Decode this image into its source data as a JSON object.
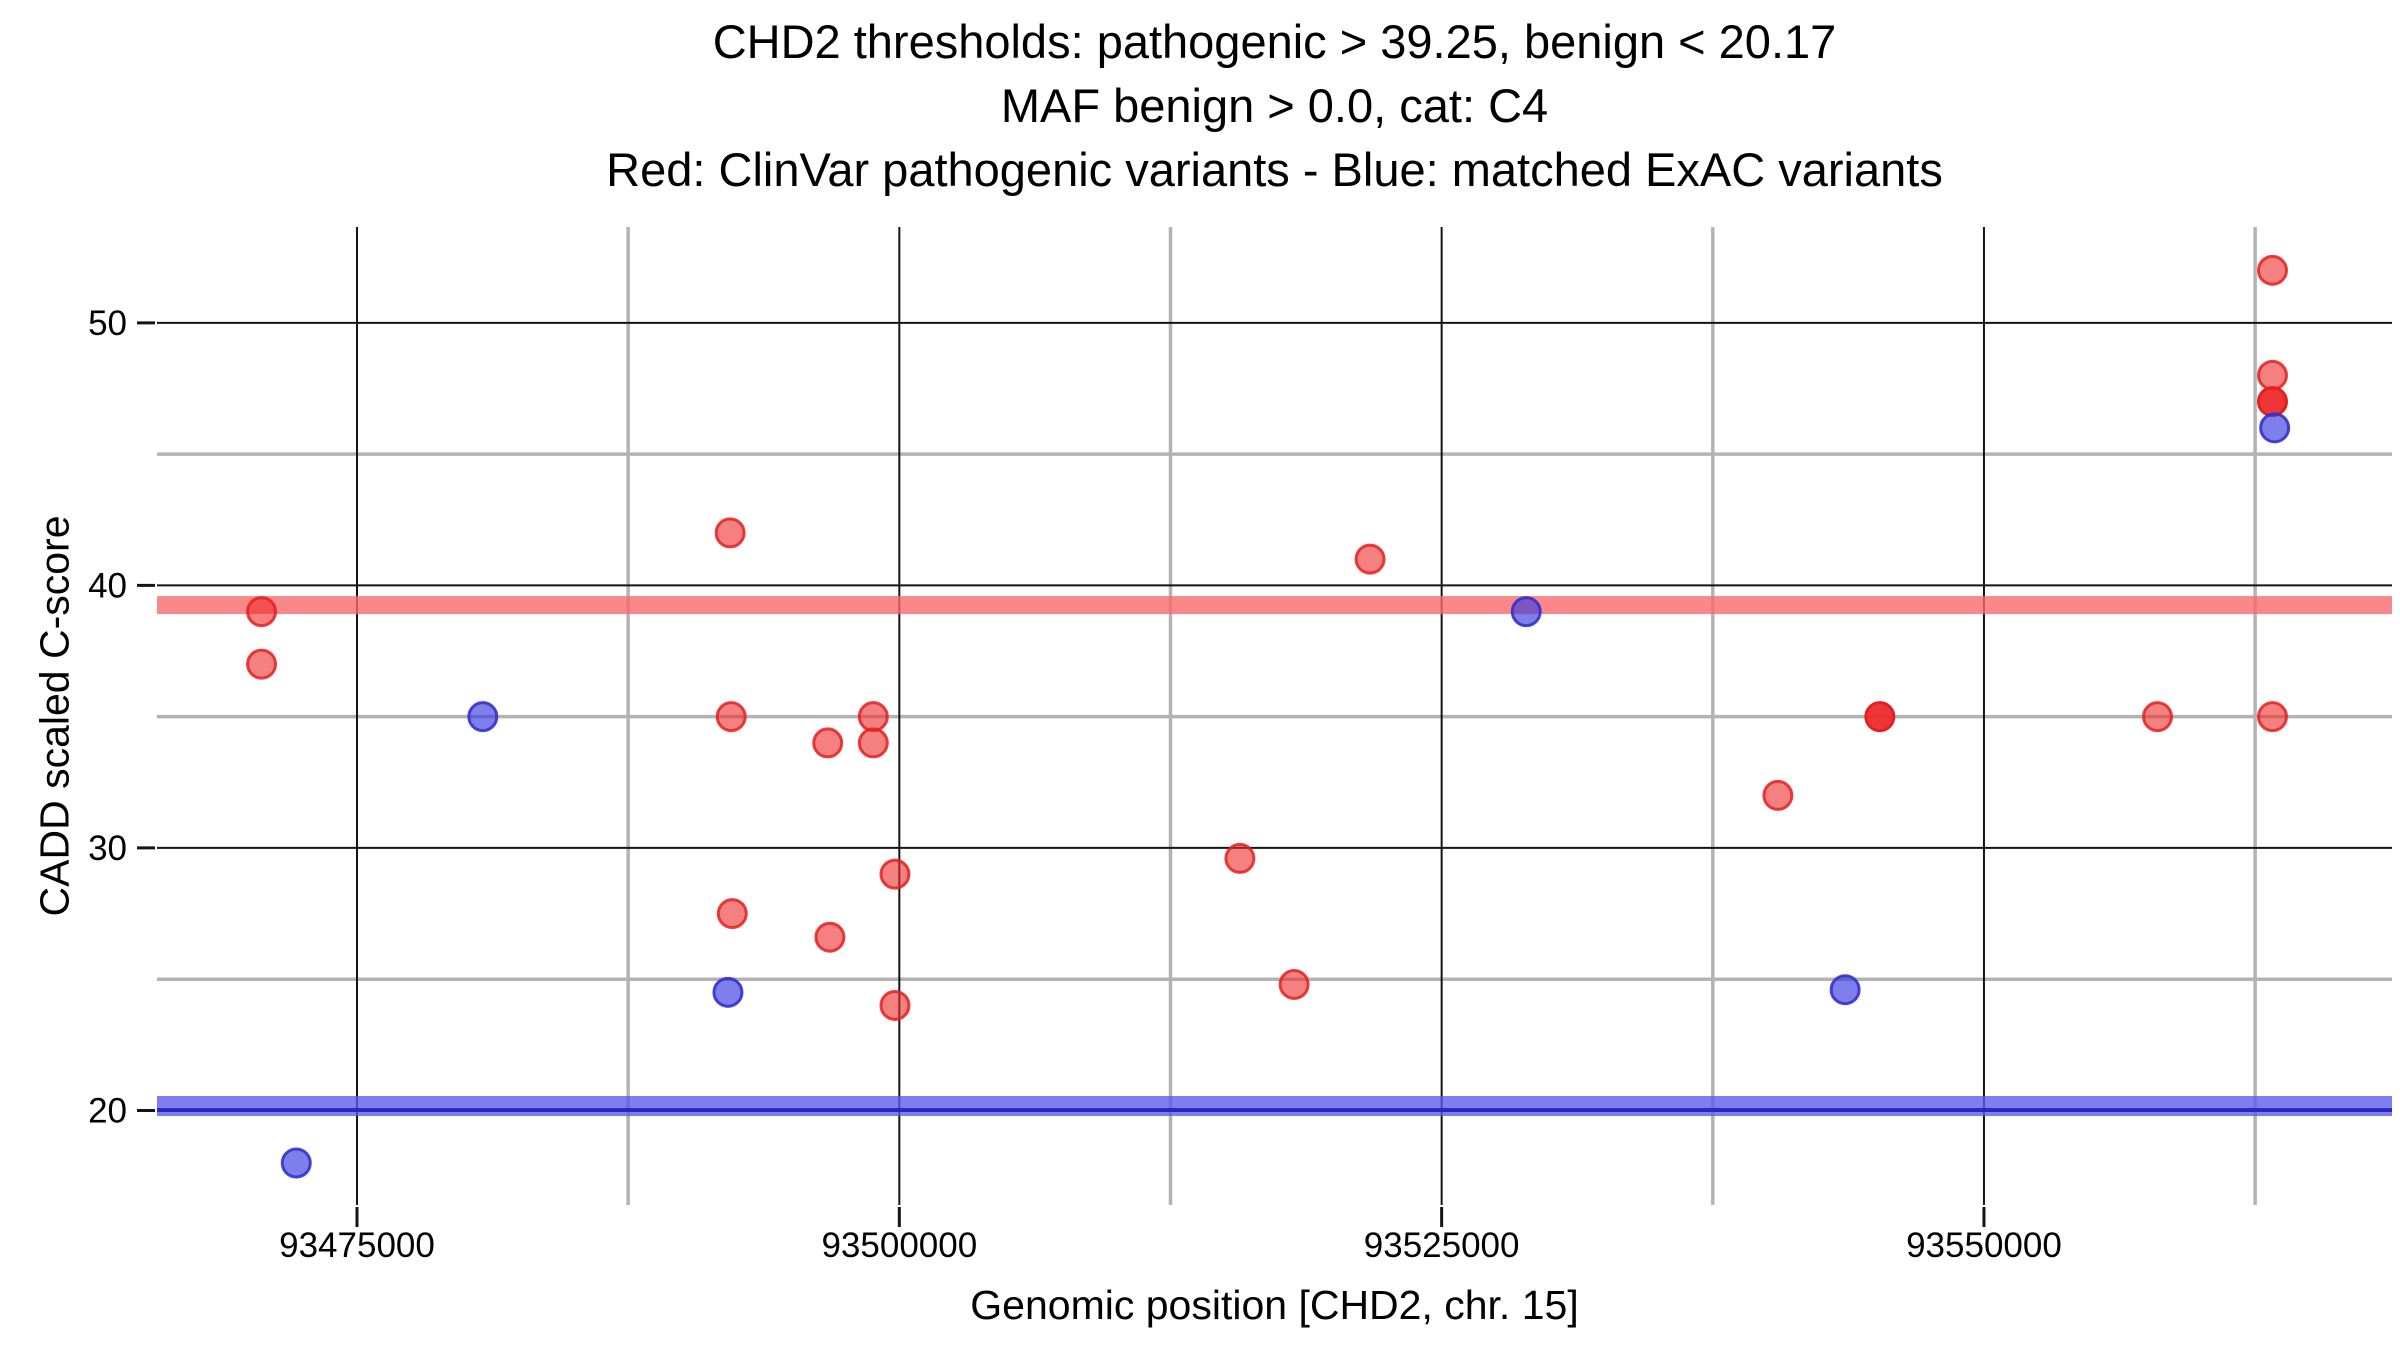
{
  "chart_data": {
    "type": "scatter",
    "title_lines": [
      "CHD2 thresholds: pathogenic > 39.25, benign < 20.17",
      "MAF benign > 0.0, cat: C4",
      "Red: ClinVar pathogenic variants - Blue: matched ExAC variants"
    ],
    "xlabel": "Genomic position [CHD2, chr. 15]",
    "ylabel": "CADD scaled C-score",
    "xlim": [
      93465780,
      93568810
    ],
    "ylim": [
      16.4,
      53.65
    ],
    "grid": "on",
    "x_ticks": [
      {
        "value": 93475000,
        "label": "93475000"
      },
      {
        "value": 93500000,
        "label": "93500000"
      },
      {
        "value": 93525000,
        "label": "93525000"
      },
      {
        "value": 93550000,
        "label": "93550000"
      }
    ],
    "x_minor_ticks": [
      93487500,
      93512500,
      93537500,
      93562500
    ],
    "y_ticks": [
      {
        "value": 20,
        "label": "20"
      },
      {
        "value": 30,
        "label": "30"
      },
      {
        "value": 40,
        "label": "40"
      },
      {
        "value": 50,
        "label": "50"
      }
    ],
    "y_minor_ticks": [
      25,
      35,
      45
    ],
    "thresholds": {
      "pathogenic": {
        "value": 39.25,
        "rule": "pathogenic > 39.25",
        "band_color": "#fa6a6a"
      },
      "benign": {
        "value": 20.17,
        "rule": "benign < 20.17",
        "band_color": "#5a5aee",
        "core_color": "#2323b8"
      }
    },
    "series": [
      {
        "name": "ClinVar pathogenic variants",
        "color": "#ee2b2b",
        "stroke": "#e32020",
        "points": [
          {
            "x": 93470600,
            "y": 39
          },
          {
            "x": 93470600,
            "y": 37
          },
          {
            "x": 93492200,
            "y": 42
          },
          {
            "x": 93492250,
            "y": 35
          },
          {
            "x": 93498800,
            "y": 35
          },
          {
            "x": 93496700,
            "y": 34
          },
          {
            "x": 93498800,
            "y": 34
          },
          {
            "x": 93499800,
            "y": 29
          },
          {
            "x": 93492300,
            "y": 27.5
          },
          {
            "x": 93496800,
            "y": 26.6
          },
          {
            "x": 93499800,
            "y": 24
          },
          {
            "x": 93515700,
            "y": 29.6
          },
          {
            "x": 93518200,
            "y": 24.8
          },
          {
            "x": 93521700,
            "y": 41
          },
          {
            "x": 93540500,
            "y": 32
          },
          {
            "x": 93545200,
            "y": 35,
            "overlap": true
          },
          {
            "x": 93558000,
            "y": 35
          },
          {
            "x": 93563300,
            "y": 52
          },
          {
            "x": 93563300,
            "y": 48
          },
          {
            "x": 93563300,
            "y": 47,
            "overlap": true
          },
          {
            "x": 93563300,
            "y": 35
          }
        ]
      },
      {
        "name": "matched ExAC variants",
        "color": "#3d3de0",
        "stroke": "#3232cc",
        "points": [
          {
            "x": 93472200,
            "y": 18
          },
          {
            "x": 93480800,
            "y": 35
          },
          {
            "x": 93492100,
            "y": 24.5
          },
          {
            "x": 93528900,
            "y": 39
          },
          {
            "x": 93543600,
            "y": 24.6
          },
          {
            "x": 93563400,
            "y": 46
          }
        ]
      }
    ],
    "colors": {
      "background": "#ffffff",
      "grid_major": "#141414",
      "grid_minor": "#b3b3b3",
      "tick": "#141414",
      "text": "#000000"
    }
  }
}
